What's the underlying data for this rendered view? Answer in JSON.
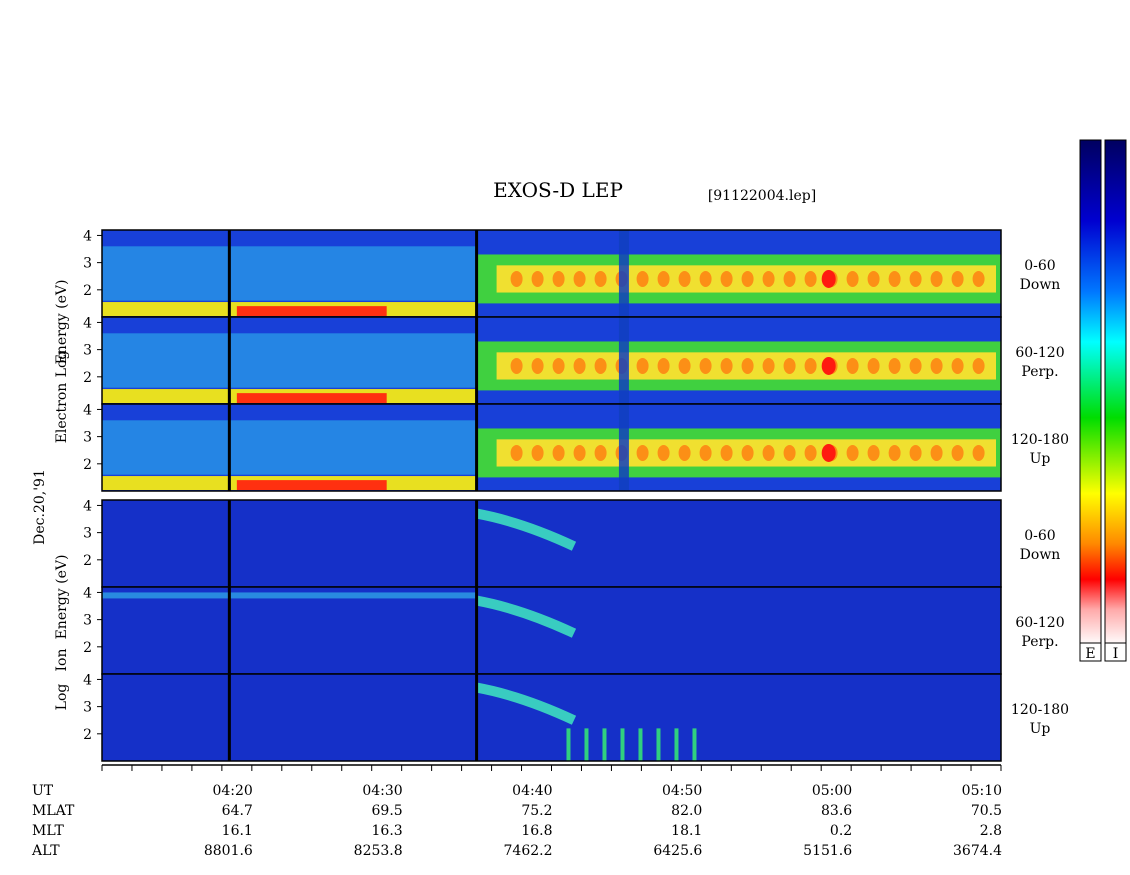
{
  "title": "EXOS-D LEP",
  "filename": "[91122004.lep]",
  "date_label": "Dec.20,'91",
  "groups": [
    {
      "ylabel": [
        "Log",
        "Electron",
        "Energy (eV)"
      ]
    },
    {
      "ylabel": [
        "Log",
        "Ion",
        "Energy (eV)"
      ]
    }
  ],
  "panels": [
    {
      "group": "Electron",
      "label_top": "0-60",
      "label_bottom": "Down"
    },
    {
      "group": "Electron",
      "label_top": "60-120",
      "label_bottom": "Perp."
    },
    {
      "group": "Electron",
      "label_top": "120-180",
      "label_bottom": "Up"
    },
    {
      "group": "Ion",
      "label_top": "0-60",
      "label_bottom": "Down"
    },
    {
      "group": "Ion",
      "label_top": "60-120",
      "label_bottom": "Perp."
    },
    {
      "group": "Ion",
      "label_top": "120-180",
      "label_bottom": "Up"
    }
  ],
  "yticks": [
    "4",
    "3",
    "2"
  ],
  "row_labels": [
    "UT",
    "MLAT",
    "MLT",
    "ALT"
  ],
  "columns": [
    {
      "UT": "04:20",
      "MLAT": "64.7",
      "MLT": "16.1",
      "ALT": "8801.6"
    },
    {
      "UT": "04:30",
      "MLAT": "69.5",
      "MLT": "16.3",
      "ALT": "8253.8"
    },
    {
      "UT": "04:40",
      "MLAT": "75.2",
      "MLT": "16.8",
      "ALT": "7462.2"
    },
    {
      "UT": "04:50",
      "MLAT": "82.0",
      "MLT": "18.1",
      "ALT": "6425.6"
    },
    {
      "UT": "05:00",
      "MLAT": "83.6",
      "MLT": "0.2",
      "ALT": "5151.6"
    },
    {
      "UT": "05:10",
      "MLAT": "70.5",
      "MLT": "2.8",
      "ALT": "3674.4"
    }
  ],
  "colorbars": [
    {
      "label": "E"
    },
    {
      "label": "I"
    }
  ],
  "chart_data": {
    "type": "heatmap",
    "title": "EXOS-D LEP",
    "x_axis": "UT",
    "x_range": [
      "04:11",
      "05:11"
    ],
    "x_major_ticks": [
      "04:20",
      "04:30",
      "04:40",
      "04:50",
      "05:00",
      "05:10"
    ],
    "y_axis": "Log Energy (eV)",
    "y_range": [
      1,
      4.2
    ],
    "vertical_markers_ut": [
      "04:19.5",
      "04:36"
    ],
    "colormap": [
      "#ffffff",
      "#ffb0b0",
      "#ff0000",
      "#ff8000",
      "#ffff00",
      "#00e000",
      "#00ffff",
      "#0066ff",
      "#0000c0",
      "#000060"
    ]
  }
}
